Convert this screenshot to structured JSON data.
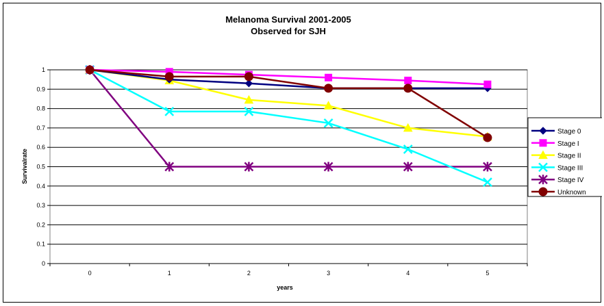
{
  "chart_data": {
    "type": "line",
    "title": "Melanoma Survival 2001-2005",
    "subtitle": "Observed for SJH",
    "xlabel": "years",
    "ylabel": "Survivalrate",
    "x": [
      0,
      1,
      2,
      3,
      4,
      5
    ],
    "x_ticks": [
      "0",
      "1",
      "2",
      "3",
      "4",
      "5"
    ],
    "y_ticks": [
      "0",
      "0.1",
      "0.2",
      "0.3",
      "0.4",
      "0.5",
      "0.6",
      "0.7",
      "0.8",
      "0.9",
      "1"
    ],
    "ylim": [
      0,
      1
    ],
    "grid": "horizontal",
    "legend_position": "right",
    "series": [
      {
        "name": "Stage 0",
        "values": [
          1,
          0.95,
          0.93,
          0.905,
          0.905,
          0.905
        ],
        "color": "#000080",
        "marker": "diamond"
      },
      {
        "name": "Stage I",
        "values": [
          1,
          0.99,
          0.975,
          0.96,
          0.945,
          0.925
        ],
        "color": "#ff00ff",
        "marker": "square"
      },
      {
        "name": "Stage II",
        "values": [
          1,
          0.945,
          0.845,
          0.815,
          0.7,
          0.655
        ],
        "color": "#ffff00",
        "marker": "triangle"
      },
      {
        "name": "Stage III",
        "values": [
          1,
          0.785,
          0.785,
          0.725,
          0.59,
          0.42
        ],
        "color": "#00ffff",
        "marker": "x"
      },
      {
        "name": "Stage IV",
        "values": [
          1,
          0.5,
          0.5,
          0.5,
          0.5,
          0.5
        ],
        "color": "#800080",
        "marker": "star"
      },
      {
        "name": "Unknown",
        "values": [
          1,
          0.965,
          0.965,
          0.905,
          0.905,
          0.65
        ],
        "color": "#800000",
        "marker": "circle"
      }
    ]
  }
}
